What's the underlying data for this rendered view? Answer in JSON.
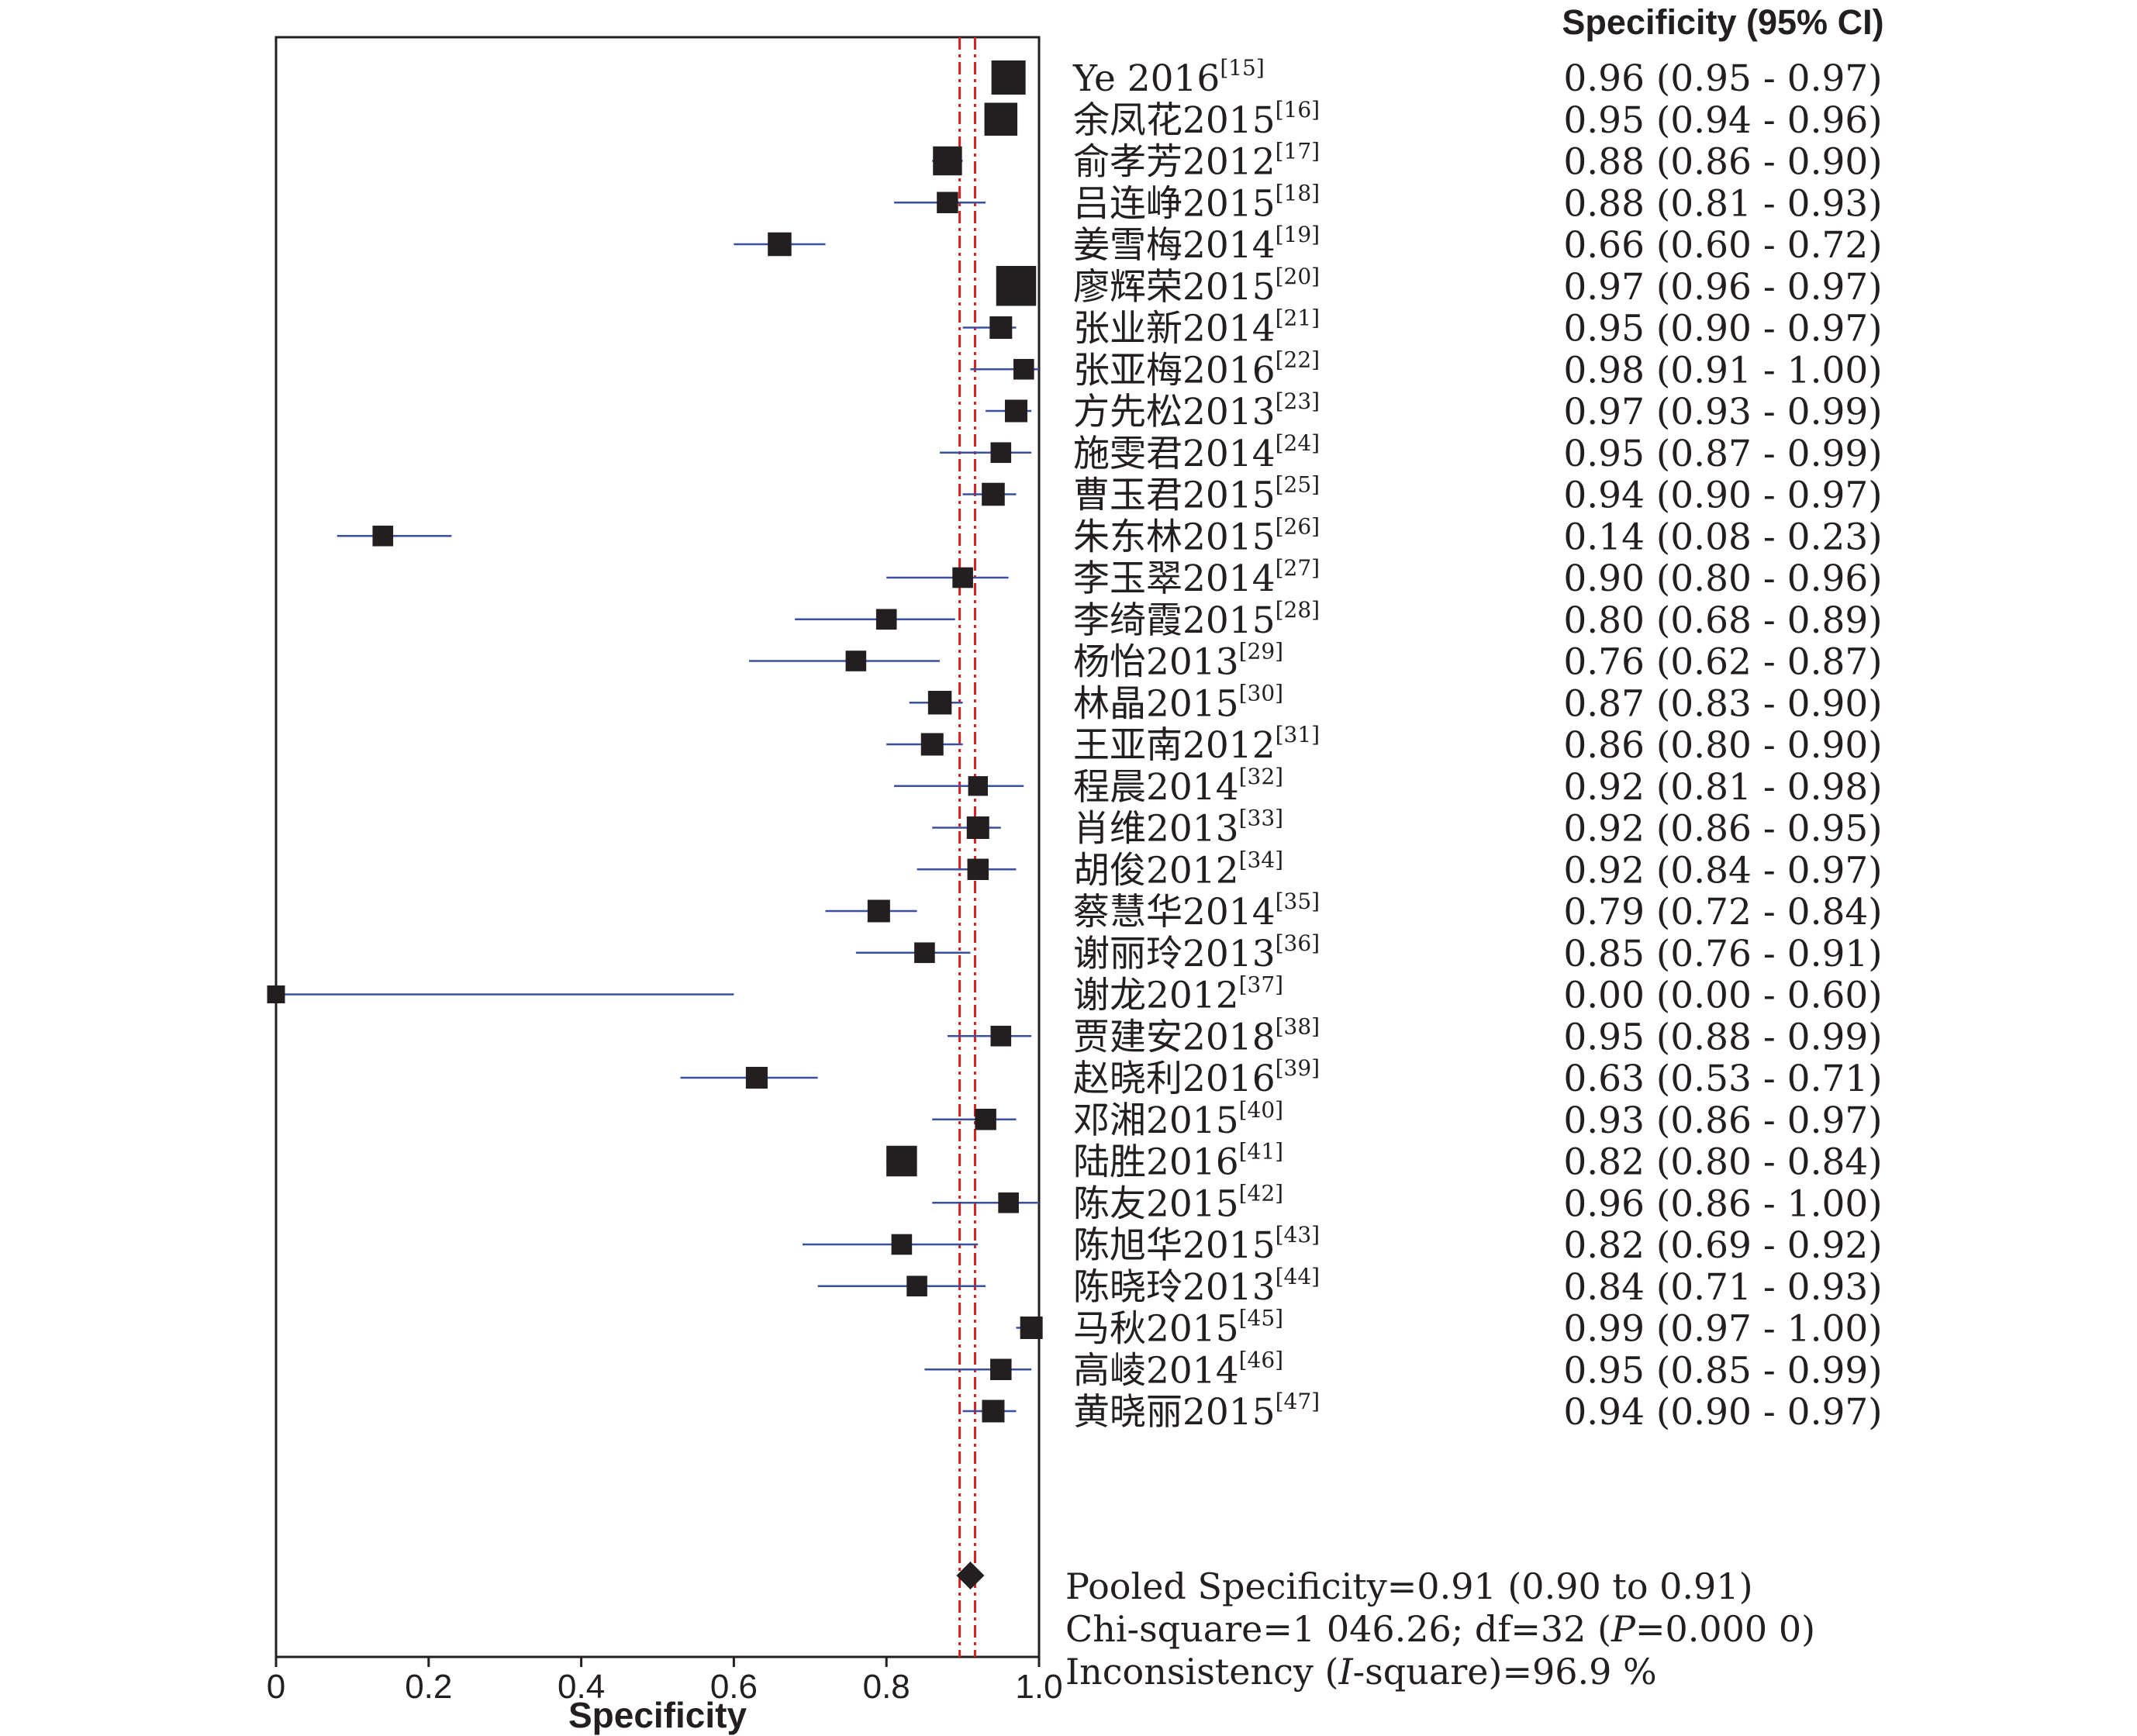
{
  "chart_data": {
    "type": "forest",
    "header": "Specificity (95% CI)",
    "xlabel": "Specificity",
    "xlim": [
      0,
      1.0
    ],
    "x_ticks": [
      "0",
      "0.2",
      "0.4",
      "0.6",
      "0.8",
      "1.0"
    ],
    "colors": {
      "ci_line": "#3a4fa0",
      "pooled_line": "#d8201e",
      "marker": "#231f20"
    },
    "studies": [
      {
        "name": "Ye 2016",
        "ref": "[15]",
        "estimate": 0.96,
        "lower": 0.95,
        "upper": 0.97,
        "ci_text": "0.96 (0.95 - 0.97)",
        "weight": 1.0
      },
      {
        "name": "余凤花2015",
        "ref": "[16]",
        "estimate": 0.95,
        "lower": 0.94,
        "upper": 0.96,
        "ci_text": "0.95 (0.94 - 0.96)",
        "weight": 0.95
      },
      {
        "name": "俞孝芳2012",
        "ref": "[17]",
        "estimate": 0.88,
        "lower": 0.86,
        "upper": 0.9,
        "ci_text": "0.88 (0.86 - 0.90)",
        "weight": 0.78
      },
      {
        "name": "吕连峥2015",
        "ref": "[18]",
        "estimate": 0.88,
        "lower": 0.81,
        "upper": 0.93,
        "ci_text": "0.88 (0.81 - 0.93)",
        "weight": 0.45
      },
      {
        "name": "姜雪梅2014",
        "ref": "[19]",
        "estimate": 0.66,
        "lower": 0.6,
        "upper": 0.72,
        "ci_text": "0.66 (0.60 - 0.72)",
        "weight": 0.55
      },
      {
        "name": "廖辉荣2015",
        "ref": "[20]",
        "estimate": 0.97,
        "lower": 0.96,
        "upper": 0.97,
        "ci_text": "0.97 (0.96 - 0.97)",
        "weight": 1.25
      },
      {
        "name": "张业新2014",
        "ref": "[21]",
        "estimate": 0.95,
        "lower": 0.9,
        "upper": 0.97,
        "ci_text": "0.95 (0.90 - 0.97)",
        "weight": 0.5
      },
      {
        "name": "张亚梅2016",
        "ref": "[22]",
        "estimate": 0.98,
        "lower": 0.91,
        "upper": 1.0,
        "ci_text": "0.98 (0.91 - 1.00)",
        "weight": 0.42
      },
      {
        "name": "方先松2013",
        "ref": "[23]",
        "estimate": 0.97,
        "lower": 0.93,
        "upper": 0.99,
        "ci_text": "0.97 (0.93 - 0.99)",
        "weight": 0.5
      },
      {
        "name": "施雯君2014",
        "ref": "[24]",
        "estimate": 0.95,
        "lower": 0.87,
        "upper": 0.99,
        "ci_text": "0.95 (0.87 - 0.99)",
        "weight": 0.42
      },
      {
        "name": "曹玉君2015",
        "ref": "[25]",
        "estimate": 0.94,
        "lower": 0.9,
        "upper": 0.97,
        "ci_text": "0.94 (0.90 - 0.97)",
        "weight": 0.52
      },
      {
        "name": "朱东林2015",
        "ref": "[26]",
        "estimate": 0.14,
        "lower": 0.08,
        "upper": 0.23,
        "ci_text": "0.14 (0.08 - 0.23)",
        "weight": 0.42
      },
      {
        "name": "李玉翠2014",
        "ref": "[27]",
        "estimate": 0.9,
        "lower": 0.8,
        "upper": 0.96,
        "ci_text": "0.90 (0.80 - 0.96)",
        "weight": 0.42
      },
      {
        "name": "李绮霞2015",
        "ref": "[28]",
        "estimate": 0.8,
        "lower": 0.68,
        "upper": 0.89,
        "ci_text": "0.80 (0.68 - 0.89)",
        "weight": 0.42
      },
      {
        "name": "杨怡2013",
        "ref": "[29]",
        "estimate": 0.76,
        "lower": 0.62,
        "upper": 0.87,
        "ci_text": "0.76 (0.62 - 0.87)",
        "weight": 0.42
      },
      {
        "name": "林晶2015",
        "ref": "[30]",
        "estimate": 0.87,
        "lower": 0.83,
        "upper": 0.9,
        "ci_text": "0.87 (0.83 - 0.90)",
        "weight": 0.55
      },
      {
        "name": "王亚南2012",
        "ref": "[31]",
        "estimate": 0.86,
        "lower": 0.8,
        "upper": 0.9,
        "ci_text": "0.86 (0.80 - 0.90)",
        "weight": 0.5
      },
      {
        "name": "程晨2014",
        "ref": "[32]",
        "estimate": 0.92,
        "lower": 0.81,
        "upper": 0.98,
        "ci_text": "0.92 (0.81 - 0.98)",
        "weight": 0.38
      },
      {
        "name": "肖维2013",
        "ref": "[33]",
        "estimate": 0.92,
        "lower": 0.86,
        "upper": 0.95,
        "ci_text": "0.92 (0.86 - 0.95)",
        "weight": 0.5
      },
      {
        "name": "胡俊2012",
        "ref": "[34]",
        "estimate": 0.92,
        "lower": 0.84,
        "upper": 0.97,
        "ci_text": "0.92 (0.84 - 0.97)",
        "weight": 0.45
      },
      {
        "name": "蔡慧华2014",
        "ref": "[35]",
        "estimate": 0.79,
        "lower": 0.72,
        "upper": 0.84,
        "ci_text": "0.79 (0.72 - 0.84)",
        "weight": 0.5
      },
      {
        "name": "谢丽玲2013",
        "ref": "[36]",
        "estimate": 0.85,
        "lower": 0.76,
        "upper": 0.91,
        "ci_text": "0.85 (0.76 - 0.91)",
        "weight": 0.42
      },
      {
        "name": "谢龙2012",
        "ref": "[37]",
        "estimate": 0.0,
        "lower": 0.0,
        "upper": 0.6,
        "ci_text": "0.00 (0.00 - 0.60)",
        "weight": 0.3
      },
      {
        "name": "贾建安2018",
        "ref": "[38]",
        "estimate": 0.95,
        "lower": 0.88,
        "upper": 0.99,
        "ci_text": "0.95 (0.88 - 0.99)",
        "weight": 0.42
      },
      {
        "name": "赵晓利2016",
        "ref": "[39]",
        "estimate": 0.63,
        "lower": 0.53,
        "upper": 0.71,
        "ci_text": "0.63 (0.53 - 0.71)",
        "weight": 0.47
      },
      {
        "name": "邓湘2015",
        "ref": "[40]",
        "estimate": 0.93,
        "lower": 0.86,
        "upper": 0.97,
        "ci_text": "0.93 (0.86 - 0.97)",
        "weight": 0.45
      },
      {
        "name": "陆胜2016",
        "ref": "[41]",
        "estimate": 0.82,
        "lower": 0.8,
        "upper": 0.84,
        "ci_text": "0.82 (0.80 - 0.84)",
        "weight": 0.85
      },
      {
        "name": "陈友2015",
        "ref": "[42]",
        "estimate": 0.96,
        "lower": 0.86,
        "upper": 1.0,
        "ci_text": "0.96 (0.86 - 1.00)",
        "weight": 0.42
      },
      {
        "name": "陈旭华2015",
        "ref": "[43]",
        "estimate": 0.82,
        "lower": 0.69,
        "upper": 0.92,
        "ci_text": "0.82 (0.69 - 0.92)",
        "weight": 0.42
      },
      {
        "name": "陈晓玲2013",
        "ref": "[44]",
        "estimate": 0.84,
        "lower": 0.71,
        "upper": 0.93,
        "ci_text": "0.84 (0.71 - 0.93)",
        "weight": 0.42
      },
      {
        "name": "马秋2015",
        "ref": "[45]",
        "estimate": 0.99,
        "lower": 0.97,
        "upper": 1.0,
        "ci_text": "0.99 (0.97 - 1.00)",
        "weight": 0.5
      },
      {
        "name": "高崚2014",
        "ref": "[46]",
        "estimate": 0.95,
        "lower": 0.85,
        "upper": 0.99,
        "ci_text": "0.95 (0.85 - 0.99)",
        "weight": 0.45
      },
      {
        "name": "黄晓丽2015",
        "ref": "[47]",
        "estimate": 0.94,
        "lower": 0.9,
        "upper": 0.97,
        "ci_text": "0.94 (0.90 - 0.97)",
        "weight": 0.5
      }
    ],
    "pooled": {
      "estimate": 0.91,
      "lower": 0.9,
      "upper": 0.91
    },
    "summary": {
      "pooled_text": "Pooled Specificity=0.91 (0.90 to 0.91)",
      "chi_prefix": "Chi-square=1 046.26; df=32 (",
      "chi_p_symbol": "P",
      "chi_suffix": "=0.000 0)",
      "inconsistency_prefix": "Inconsistency (",
      "inconsistency_symbol": "I",
      "inconsistency_suffix": "-square)=96.9 %"
    }
  }
}
